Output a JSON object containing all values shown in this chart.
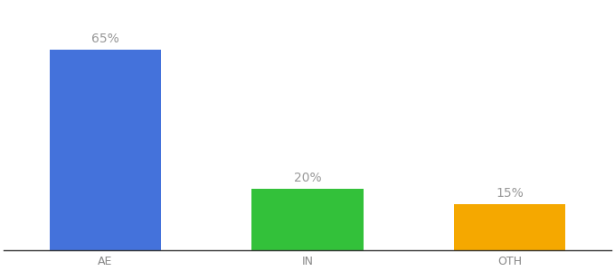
{
  "categories": [
    "AE",
    "IN",
    "OTH"
  ],
  "values": [
    65,
    20,
    15
  ],
  "labels": [
    "65%",
    "20%",
    "15%"
  ],
  "bar_colors": [
    "#4472db",
    "#33c13a",
    "#f5a800"
  ],
  "background_color": "#ffffff",
  "text_color": "#999999",
  "bar_width": 0.55,
  "ylim": [
    0,
    80
  ],
  "label_fontsize": 10,
  "tick_fontsize": 9,
  "x_positions": [
    0.5,
    1.5,
    2.5
  ],
  "xlim": [
    0.0,
    3.0
  ]
}
